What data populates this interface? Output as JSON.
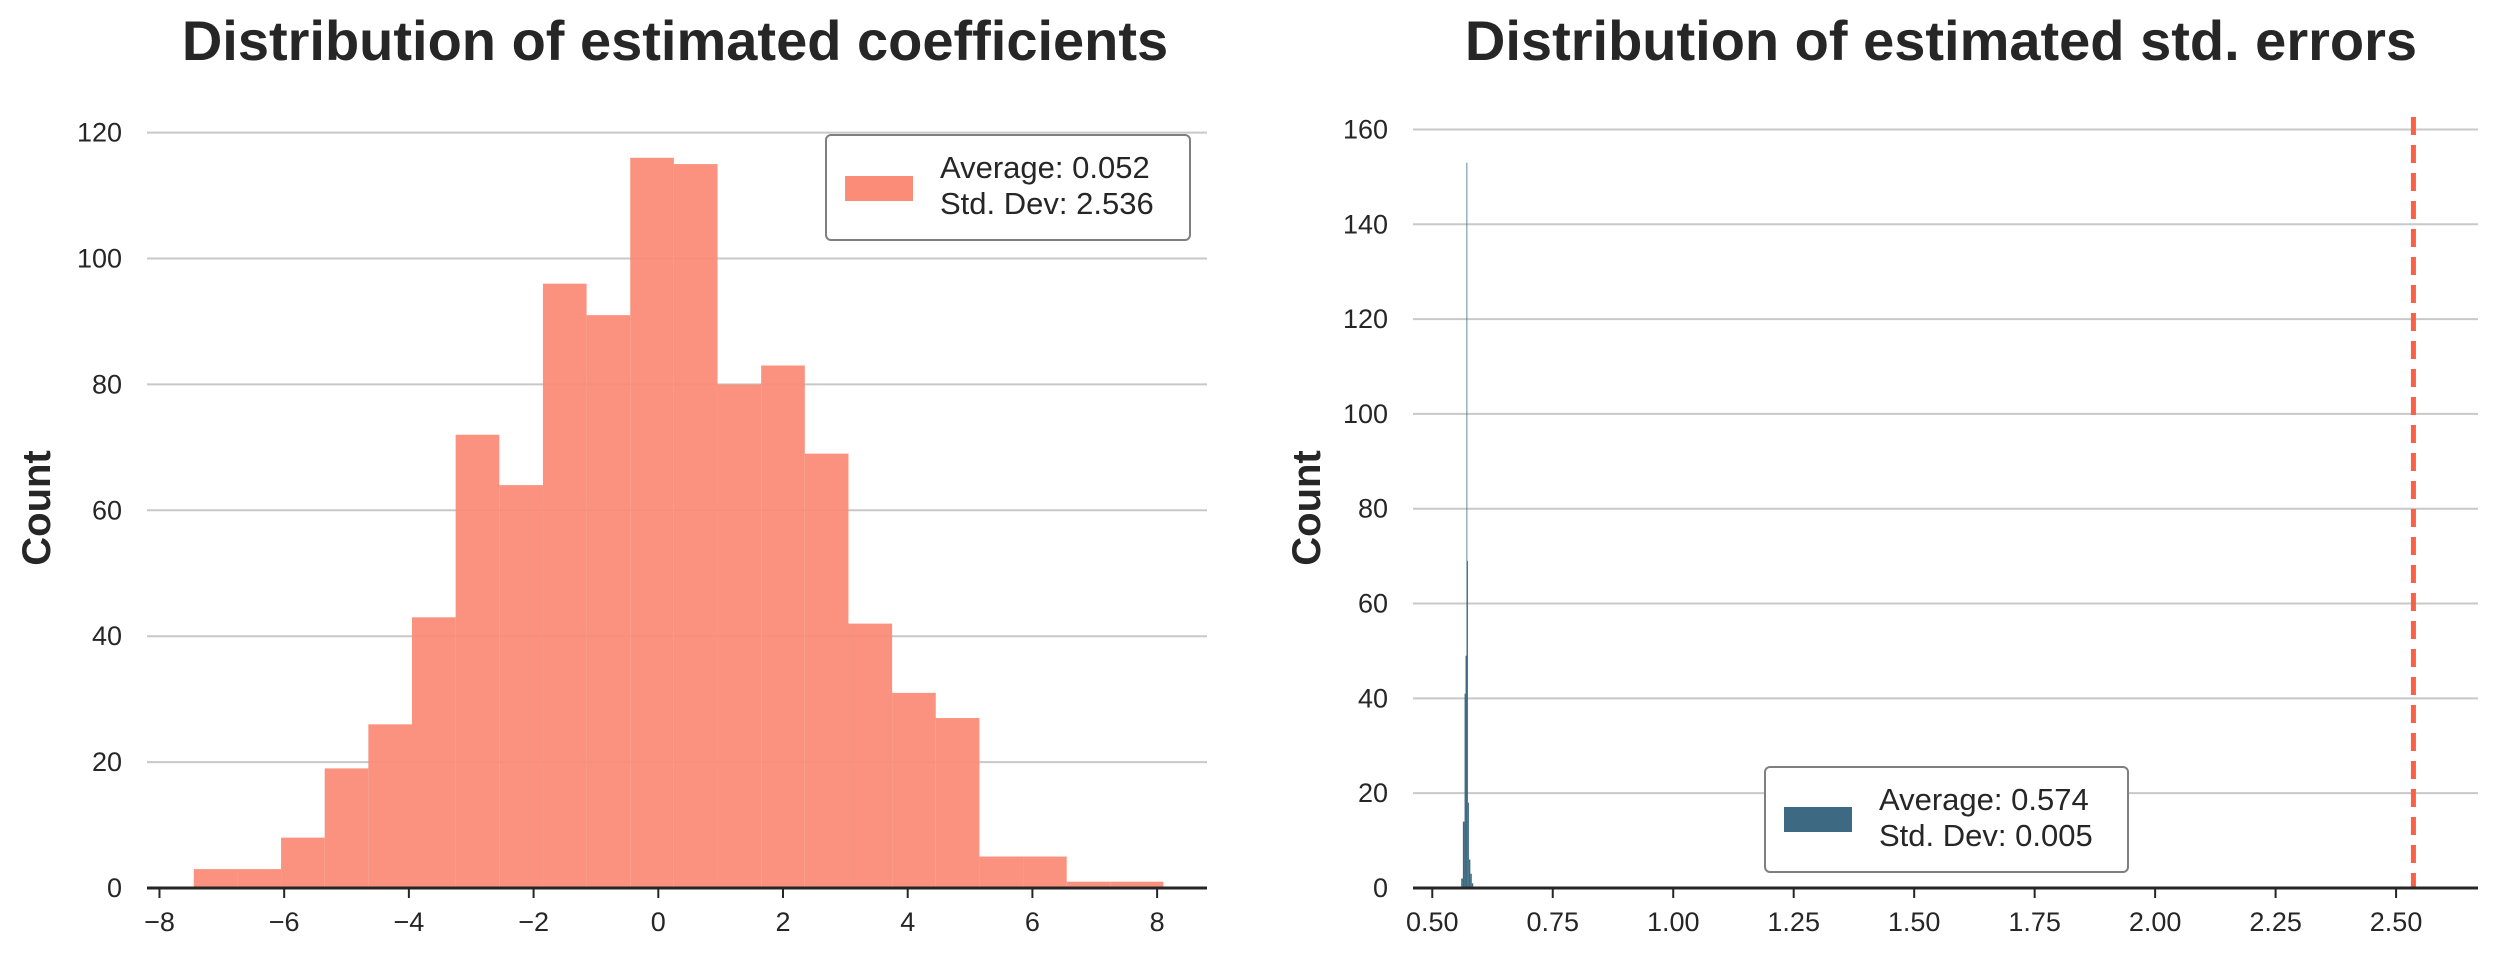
{
  "chart_data": [
    {
      "type": "bar",
      "title": "Distribution of estimated coefficients",
      "xlabel": "",
      "ylabel": "Count",
      "xlim": [
        -8.2,
        8.8
      ],
      "ylim": [
        0,
        122
      ],
      "xticks": [
        -8,
        -6,
        -4,
        -2,
        0,
        2,
        4,
        6,
        8
      ],
      "yticks": [
        0,
        20,
        40,
        60,
        80,
        100,
        120
      ],
      "grid": "horizontal",
      "bar_color": "#fa8c78",
      "bin_edges": [
        -7.45,
        -6.75,
        -6.05,
        -5.35,
        -4.65,
        -3.95,
        -3.25,
        -2.55,
        -1.85,
        -1.15,
        -0.45,
        0.25,
        0.95,
        1.65,
        2.35,
        3.05,
        3.75,
        4.45,
        5.15,
        5.85,
        6.55,
        7.25,
        8.1
      ],
      "counts": [
        3,
        3,
        8,
        19,
        26,
        43,
        72,
        64,
        96,
        91,
        116,
        115,
        80,
        83,
        69,
        42,
        31,
        27,
        5,
        5,
        1,
        1
      ],
      "legend": {
        "position": "upper right",
        "lines": [
          "Average: 0.052",
          "Std. Dev: 2.536"
        ]
      }
    },
    {
      "type": "bar",
      "title": "Distribution of estimated std. errors",
      "xlabel": "",
      "ylabel": "Count",
      "xlim": [
        0.46,
        2.67
      ],
      "ylim": [
        0,
        162
      ],
      "xticks": [
        0.5,
        0.75,
        1.0,
        1.25,
        1.5,
        1.75,
        2.0,
        2.25,
        2.5
      ],
      "xtick_labels": [
        "0.50",
        "0.75",
        "1.00",
        "1.25",
        "1.50",
        "1.75",
        "2.00",
        "2.25",
        "2.50"
      ],
      "yticks": [
        0,
        20,
        40,
        60,
        80,
        100,
        120,
        140,
        160
      ],
      "grid": "horizontal",
      "bar_color": "#3d6a82",
      "bins": [
        {
          "x0": 0.56,
          "x1": 0.5635,
          "count": 2
        },
        {
          "x0": 0.5635,
          "x1": 0.567,
          "count": 14
        },
        {
          "x0": 0.567,
          "x1": 0.569,
          "count": 41
        },
        {
          "x0": 0.569,
          "x1": 0.571,
          "count": 49
        },
        {
          "x0": 0.571,
          "x1": 0.5725,
          "count": 153
        },
        {
          "x0": 0.5725,
          "x1": 0.574,
          "count": 69
        },
        {
          "x0": 0.574,
          "x1": 0.576,
          "count": 18
        },
        {
          "x0": 0.576,
          "x1": 0.579,
          "count": 6
        },
        {
          "x0": 0.579,
          "x1": 0.582,
          "count": 3
        },
        {
          "x0": 0.582,
          "x1": 0.585,
          "count": 1
        }
      ],
      "reference_line": {
        "x": 2.536,
        "color": "#fa6046",
        "style": "dashed"
      },
      "legend": {
        "position": "lower center",
        "lines": [
          "Average: 0.574",
          "Std. Dev: 0.005"
        ]
      }
    }
  ]
}
